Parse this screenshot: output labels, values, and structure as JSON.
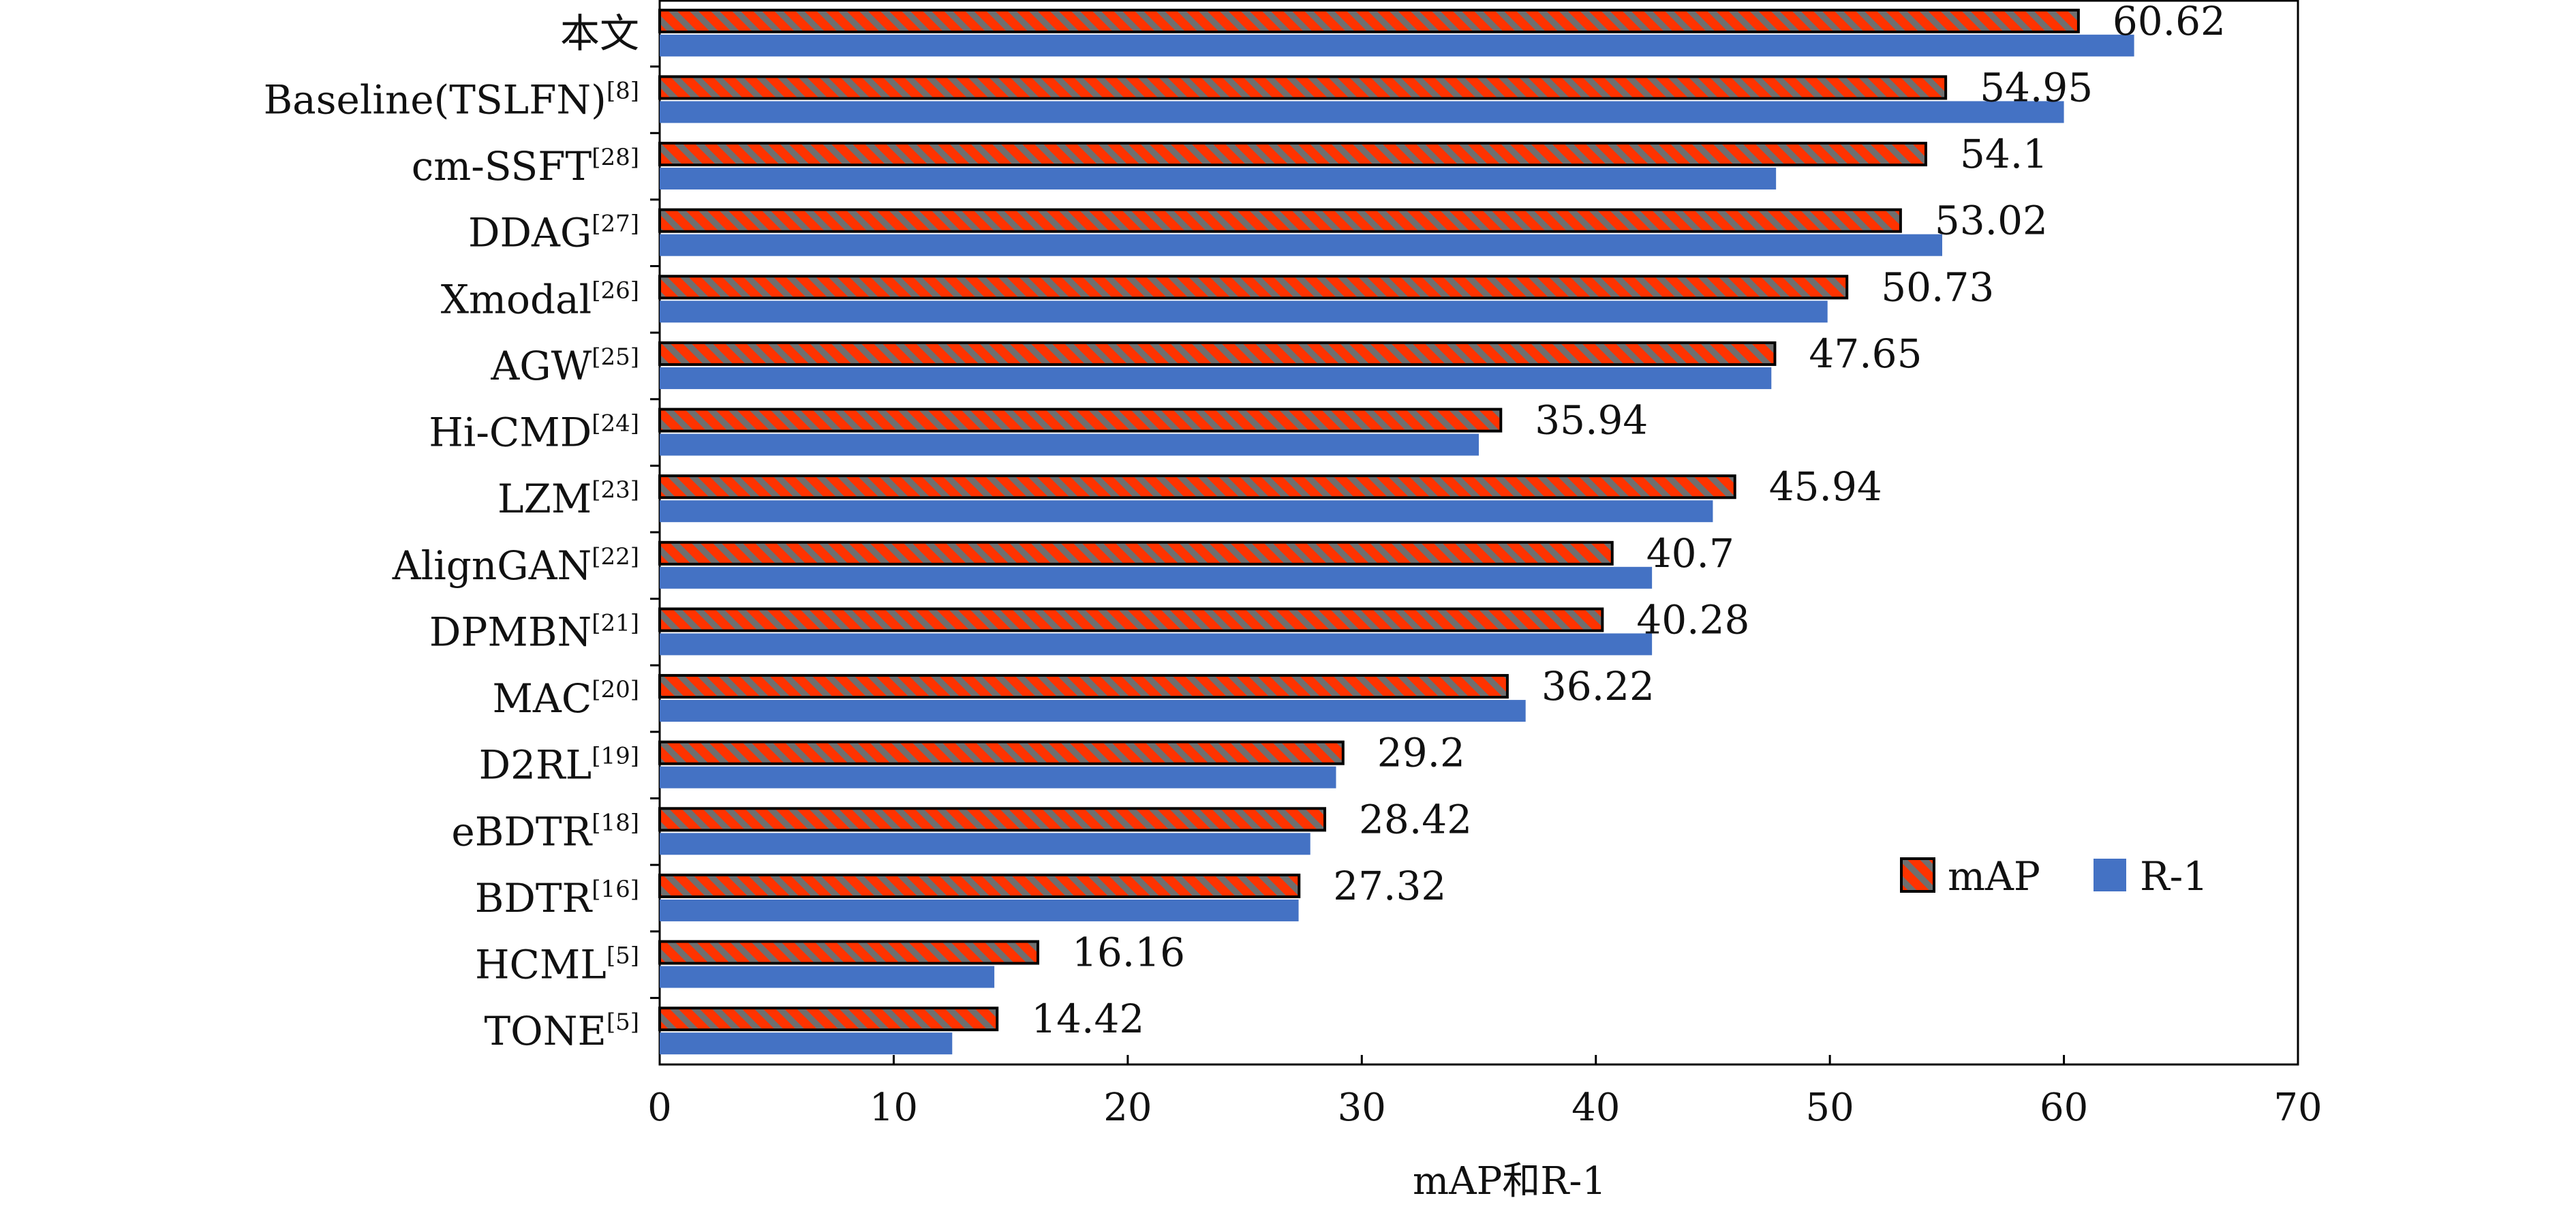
{
  "chart_data": {
    "type": "bar",
    "orientation": "horizontal",
    "categories": [
      {
        "label": "本文",
        "ref": ""
      },
      {
        "label": "Baseline(TSLFN)",
        "ref": "[8]"
      },
      {
        "label": "cm-SSFT",
        "ref": "[28]"
      },
      {
        "label": "DDAG",
        "ref": "[27]"
      },
      {
        "label": "Xmodal",
        "ref": "[26]"
      },
      {
        "label": "AGW",
        "ref": "[25]"
      },
      {
        "label": "Hi-CMD",
        "ref": "[24]"
      },
      {
        "label": "LZM",
        "ref": "[23]"
      },
      {
        "label": "AlignGAN",
        "ref": "[22]"
      },
      {
        "label": "DPMBN",
        "ref": "[21]"
      },
      {
        "label": "MAC",
        "ref": "[20]"
      },
      {
        "label": "D2RL",
        "ref": "[19]"
      },
      {
        "label": "eBDTR",
        "ref": "[18]"
      },
      {
        "label": "BDTR",
        "ref": "[16]"
      },
      {
        "label": "HCML",
        "ref": "[5]"
      },
      {
        "label": "TONE",
        "ref": "[5]"
      }
    ],
    "series": [
      {
        "name": "mAP",
        "color": "#ff3300",
        "pattern": "diagonal-hatch-gray",
        "values": [
          60.62,
          54.95,
          54.1,
          53.02,
          50.73,
          47.65,
          35.94,
          45.94,
          40.7,
          40.28,
          36.22,
          29.2,
          28.42,
          27.32,
          16.16,
          14.42
        ],
        "data_labels": [
          "60.62",
          "54.95",
          "54.1",
          "53.02",
          "50.73",
          "47.65",
          "35.94",
          "45.94",
          "40.7",
          "40.28",
          "36.22",
          "29.2",
          "28.42",
          "27.32",
          "16.16",
          "14.42"
        ]
      },
      {
        "name": "R-1",
        "color": "#4472c4",
        "values": [
          63.0,
          60.0,
          47.7,
          54.8,
          49.9,
          47.5,
          35.0,
          45.0,
          42.4,
          42.4,
          37.0,
          28.9,
          27.8,
          27.3,
          14.3,
          12.5
        ]
      }
    ],
    "xlabel": "mAP和R-1",
    "xlim": [
      0,
      70
    ],
    "xticks": [
      "0",
      "10",
      "20",
      "30",
      "40",
      "50",
      "60",
      "70"
    ],
    "legend": "lower-right",
    "grid": false
  }
}
